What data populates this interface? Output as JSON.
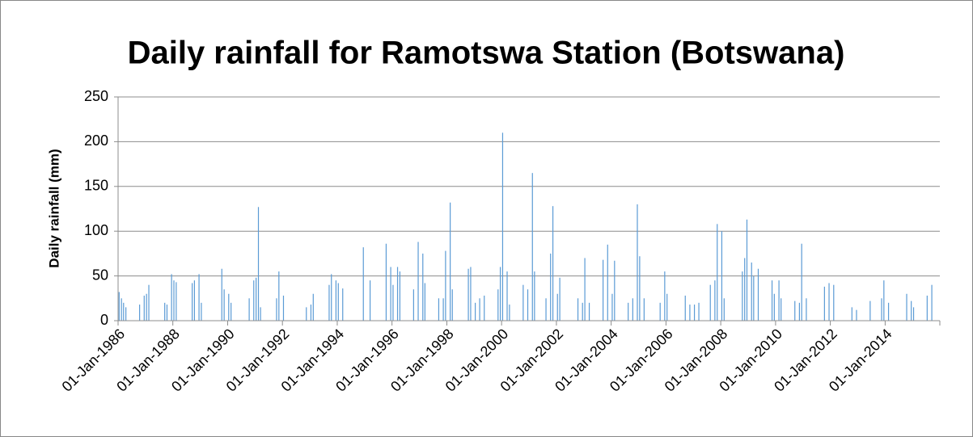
{
  "chart_data": {
    "type": "bar",
    "title": "Daily rainfall for Ramotswa Station (Botswana)",
    "y_label": "Daily rainfall (mm)",
    "color": "#5b9bd5",
    "grid": true,
    "xlim": [
      "1986-01-01",
      "2015-12-31"
    ],
    "ylim": [
      0,
      250
    ],
    "yticks": [
      0,
      50,
      100,
      150,
      200,
      250
    ],
    "xticks": [
      {
        "value": "1986-01-01",
        "label": "01-Jan-1986"
      },
      {
        "value": "1988-01-01",
        "label": "01-Jan-1988"
      },
      {
        "value": "1990-01-01",
        "label": "01-Jan-1990"
      },
      {
        "value": "1992-01-01",
        "label": "01-Jan-1992"
      },
      {
        "value": "1994-01-01",
        "label": "01-Jan-1994"
      },
      {
        "value": "1996-01-01",
        "label": "01-Jan-1996"
      },
      {
        "value": "1998-01-01",
        "label": "01-Jan-1998"
      },
      {
        "value": "2000-01-01",
        "label": "01-Jan-2000"
      },
      {
        "value": "2002-01-01",
        "label": "01-Jan-2002"
      },
      {
        "value": "2004-01-01",
        "label": "01-Jan-2004"
      },
      {
        "value": "2006-01-01",
        "label": "01-Jan-2006"
      },
      {
        "value": "2008-01-01",
        "label": "01-Jan-2008"
      },
      {
        "value": "2010-01-01",
        "label": "01-Jan-2010"
      },
      {
        "value": "2012-01-01",
        "label": "01-Jan-2012"
      },
      {
        "value": "2014-01-01",
        "label": "01-Jan-2014"
      }
    ],
    "x": [
      "1986-01-15",
      "1986-02-15",
      "1986-03-15",
      "1986-04-15",
      "1986-10-15",
      "1986-12-15",
      "1987-01-15",
      "1987-02-15",
      "1987-09-15",
      "1987-10-15",
      "1987-12-15",
      "1988-01-15",
      "1988-02-15",
      "1988-09-15",
      "1988-10-15",
      "1988-12-15",
      "1989-01-15",
      "1989-10-15",
      "1989-11-15",
      "1990-01-15",
      "1990-02-15",
      "1990-10-15",
      "1990-12-15",
      "1991-01-15",
      "1991-02-15",
      "1991-03-15",
      "1991-10-15",
      "1991-11-15",
      "1992-01-15",
      "1992-11-15",
      "1993-01-15",
      "1993-02-15",
      "1993-09-15",
      "1993-10-15",
      "1993-12-15",
      "1994-01-15",
      "1994-03-15",
      "1994-12-15",
      "1995-03-15",
      "1995-10-15",
      "1995-12-15",
      "1996-01-15",
      "1996-03-15",
      "1996-04-15",
      "1996-10-15",
      "1996-12-15",
      "1997-02-15",
      "1997-03-15",
      "1997-09-15",
      "1997-11-15",
      "1997-12-15",
      "1998-02-15",
      "1998-03-15",
      "1998-10-15",
      "1998-11-15",
      "1999-01-15",
      "1999-03-15",
      "1999-05-15",
      "1999-11-15",
      "1999-12-15",
      "2000-01-15",
      "2000-03-15",
      "2000-04-15",
      "2000-10-15",
      "2000-12-15",
      "2001-02-15",
      "2001-03-15",
      "2001-08-15",
      "2001-10-15",
      "2001-11-15",
      "2002-01-15",
      "2002-02-15",
      "2002-10-15",
      "2002-12-15",
      "2003-01-15",
      "2003-03-15",
      "2003-09-15",
      "2003-11-15",
      "2004-01-15",
      "2004-02-15",
      "2004-08-15",
      "2004-10-15",
      "2004-12-15",
      "2005-01-15",
      "2005-03-15",
      "2005-10-15",
      "2005-12-15",
      "2006-01-15",
      "2006-09-15",
      "2006-11-15",
      "2007-01-15",
      "2007-03-15",
      "2007-08-15",
      "2007-10-15",
      "2007-11-15",
      "2008-01-15",
      "2008-02-15",
      "2008-10-15",
      "2008-11-15",
      "2008-12-15",
      "2009-02-15",
      "2009-03-15",
      "2009-05-15",
      "2009-11-15",
      "2009-12-15",
      "2010-02-15",
      "2010-03-15",
      "2010-09-15",
      "2010-11-15",
      "2010-12-15",
      "2011-02-15",
      "2011-10-15",
      "2011-12-15",
      "2012-02-15",
      "2012-10-15",
      "2012-12-15",
      "2013-06-15",
      "2013-11-15",
      "2013-12-15",
      "2014-02-15",
      "2014-10-15",
      "2014-12-15",
      "2015-01-15",
      "2015-07-15",
      "2015-09-15"
    ],
    "values": [
      32,
      25,
      20,
      15,
      18,
      28,
      30,
      40,
      20,
      18,
      52,
      45,
      43,
      42,
      45,
      52,
      20,
      58,
      35,
      30,
      20,
      25,
      45,
      48,
      127,
      15,
      25,
      55,
      28,
      15,
      18,
      30,
      40,
      52,
      45,
      42,
      36,
      82,
      45,
      86,
      60,
      40,
      60,
      55,
      35,
      88,
      75,
      42,
      25,
      25,
      78,
      132,
      35,
      58,
      60,
      20,
      25,
      28,
      35,
      60,
      210,
      55,
      18,
      40,
      35,
      165,
      55,
      25,
      75,
      128,
      30,
      48,
      25,
      20,
      70,
      20,
      68,
      85,
      30,
      67,
      20,
      25,
      130,
      72,
      25,
      20,
      55,
      30,
      28,
      18,
      18,
      20,
      40,
      45,
      108,
      100,
      25,
      55,
      70,
      113,
      65,
      50,
      58,
      45,
      30,
      45,
      25,
      22,
      20,
      86,
      25,
      38,
      42,
      40,
      15,
      12,
      22,
      25,
      45,
      20,
      30,
      22,
      15,
      28,
      40
    ]
  }
}
